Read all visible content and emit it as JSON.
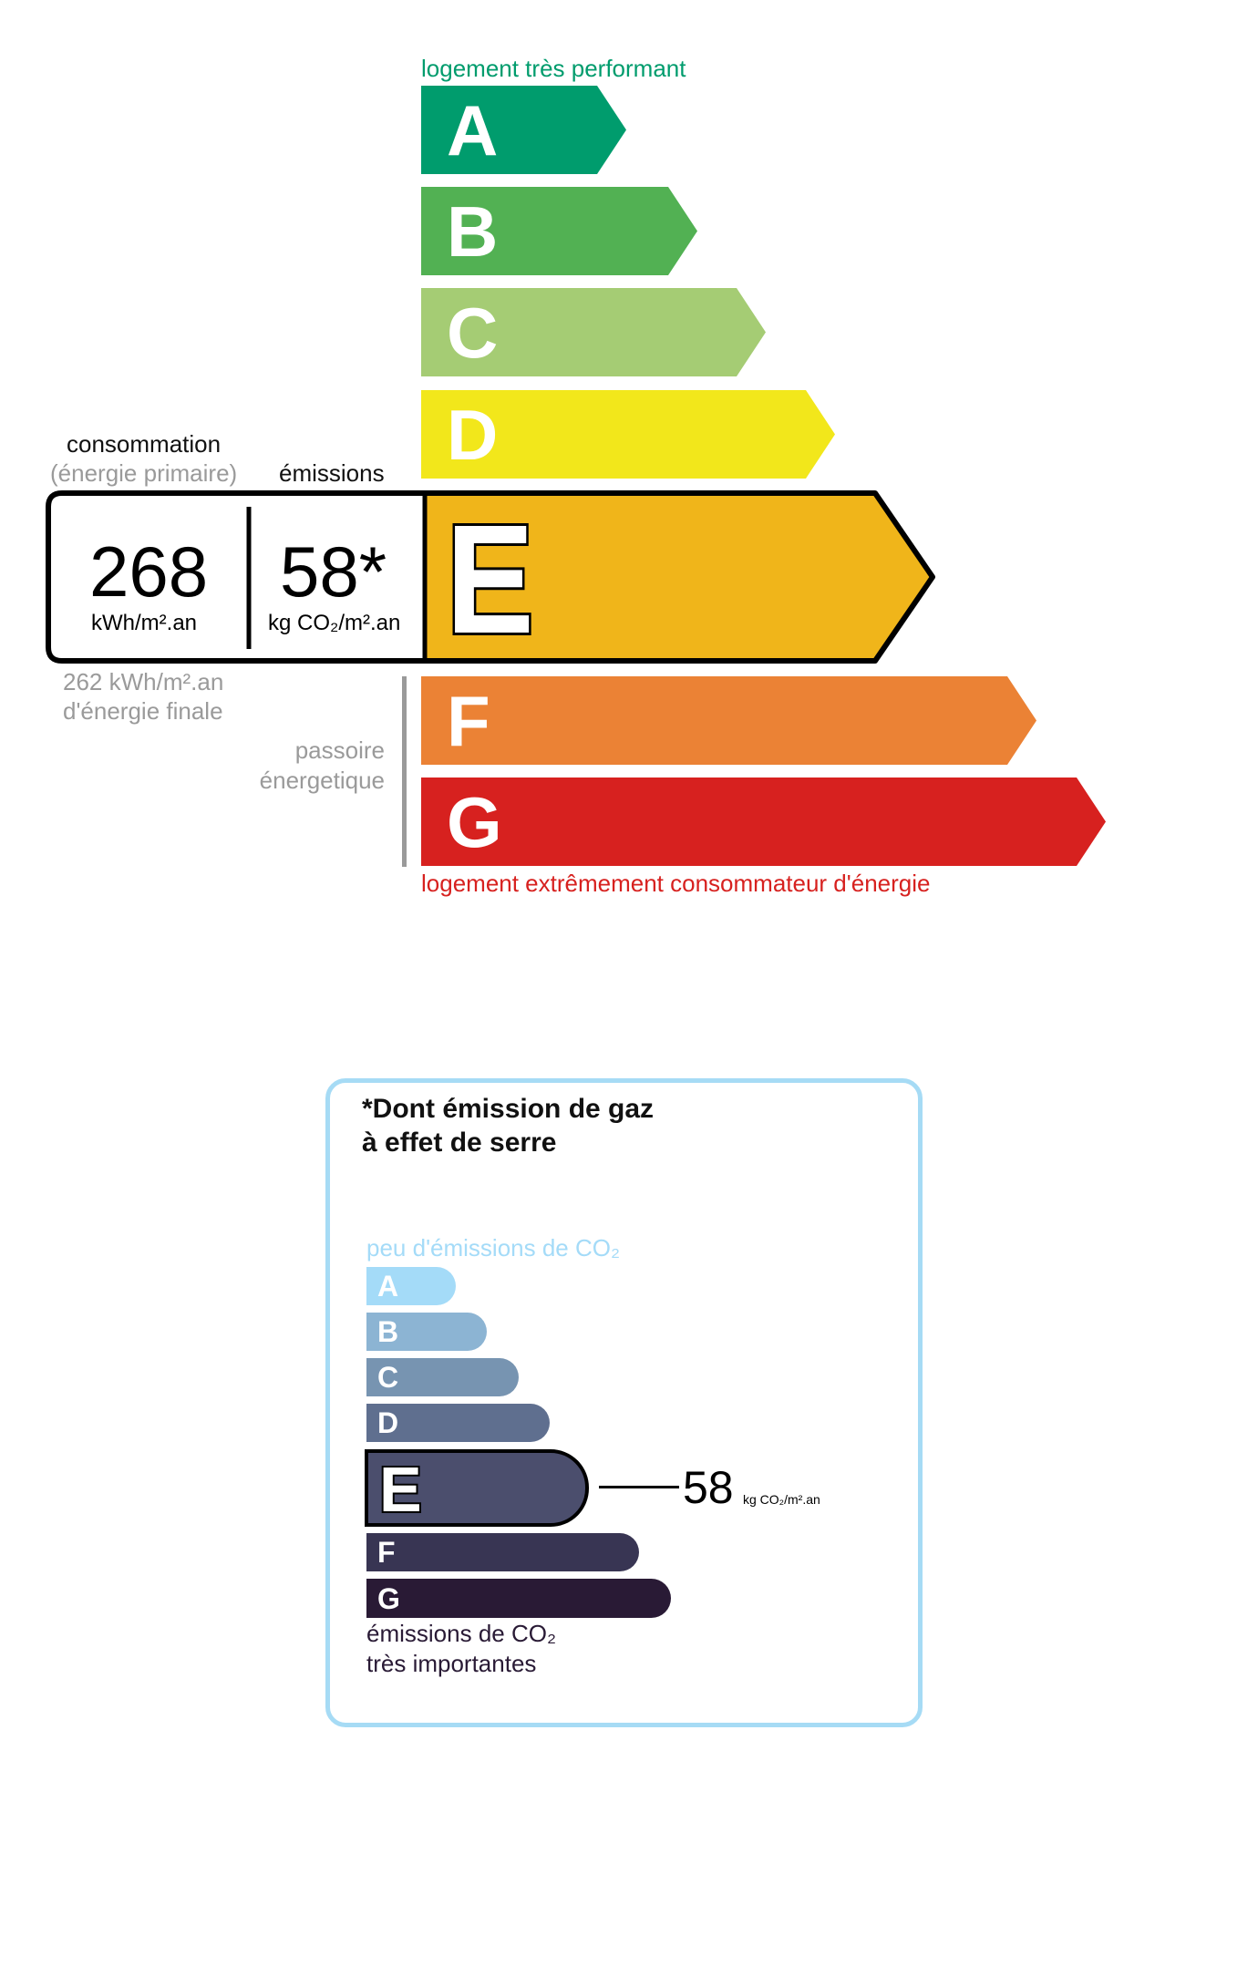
{
  "energy_label": {
    "top_caption": "logement très performant",
    "bottom_caption": "logement extrêmement consommateur d'énergie",
    "classes": [
      {
        "letter": "A",
        "color": "#009c6d"
      },
      {
        "letter": "B",
        "color": "#52b153"
      },
      {
        "letter": "C",
        "color": "#a5cc74"
      },
      {
        "letter": "D",
        "color": "#f2e71b"
      },
      {
        "letter": "E",
        "color": "#f0b51a"
      },
      {
        "letter": "F",
        "color": "#eb8235"
      },
      {
        "letter": "G",
        "color": "#d7211f"
      }
    ],
    "current_class": "E",
    "consumption_label": "consommation",
    "consumption_sublabel": "(énergie primaire)",
    "emissions_label": "émissions",
    "consumption_value": "268",
    "consumption_unit": "kWh/m².an",
    "emissions_value": "58*",
    "emissions_unit": "kg CO₂/m².an",
    "final_energy_line1": "262 kWh/m².an",
    "final_energy_line2": "d'énergie finale",
    "passoire_line1": "passoire",
    "passoire_line2": "énergetique",
    "top_caption_color": "#009c6d",
    "bottom_caption_color": "#d7211f"
  },
  "ges_label": {
    "title_line1": "*Dont émission de gaz",
    "title_line2": "à effet de serre",
    "top_caption": "peu d'émissions de CO₂",
    "bottom_caption_line1": "émissions de CO₂",
    "bottom_caption_line2": "très importantes",
    "classes": [
      {
        "letter": "A",
        "color": "#a4dbf8"
      },
      {
        "letter": "B",
        "color": "#8cb4d3"
      },
      {
        "letter": "C",
        "color": "#7794b1"
      },
      {
        "letter": "D",
        "color": "#5f6f8f"
      },
      {
        "letter": "E",
        "color": "#4b4e6d"
      },
      {
        "letter": "F",
        "color": "#383553"
      },
      {
        "letter": "G",
        "color": "#291a35"
      }
    ],
    "current_class": "E",
    "value": "58",
    "unit": "kg CO₂/m².an",
    "border_color": "#a6dbf5"
  }
}
